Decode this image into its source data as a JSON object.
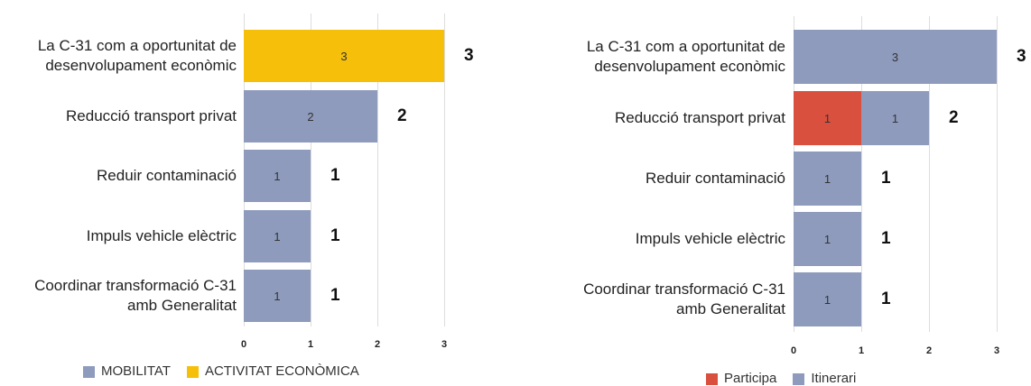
{
  "chart_data": [
    {
      "type": "stacked_barh",
      "categories": [
        "La C-31 com a oportunitat de\ndesenvolupament econòmic",
        "Reducció transport privat",
        "Reduir contaminació",
        "Impuls vehicle elèctric",
        "Coordinar transformació C-31\namb Generalitat"
      ],
      "series": [
        {
          "name": "MOBILITAT",
          "color": "#8e9bbd",
          "values": [
            0,
            2,
            1,
            1,
            1
          ]
        },
        {
          "name": "ACTIVITAT ECONÒMICA",
          "color": "#f5bf0a",
          "values": [
            3,
            0,
            0,
            0,
            0
          ]
        }
      ],
      "totals": [
        3,
        2,
        1,
        1,
        1
      ],
      "xlim": [
        0,
        3
      ],
      "xticks": [
        0,
        1,
        2,
        3
      ],
      "grid": true,
      "legend": "bottom"
    },
    {
      "type": "stacked_barh",
      "categories": [
        "La C-31 com a oportunitat de\ndesenvolupament econòmic",
        "Reducció transport privat",
        "Reduir contaminació",
        "Impuls vehicle elèctric",
        "Coordinar transformació C-31\namb Generalitat"
      ],
      "series": [
        {
          "name": "Participa",
          "color": "#d9503f",
          "values": [
            0,
            1,
            0,
            0,
            0
          ]
        },
        {
          "name": "Itinerari",
          "color": "#8e9bbd",
          "values": [
            3,
            1,
            1,
            1,
            1
          ]
        }
      ],
      "totals": [
        3,
        2,
        1,
        1,
        1
      ],
      "xlim": [
        0,
        3
      ],
      "xticks": [
        0,
        1,
        2,
        3
      ],
      "grid": true,
      "legend": "bottom"
    }
  ]
}
